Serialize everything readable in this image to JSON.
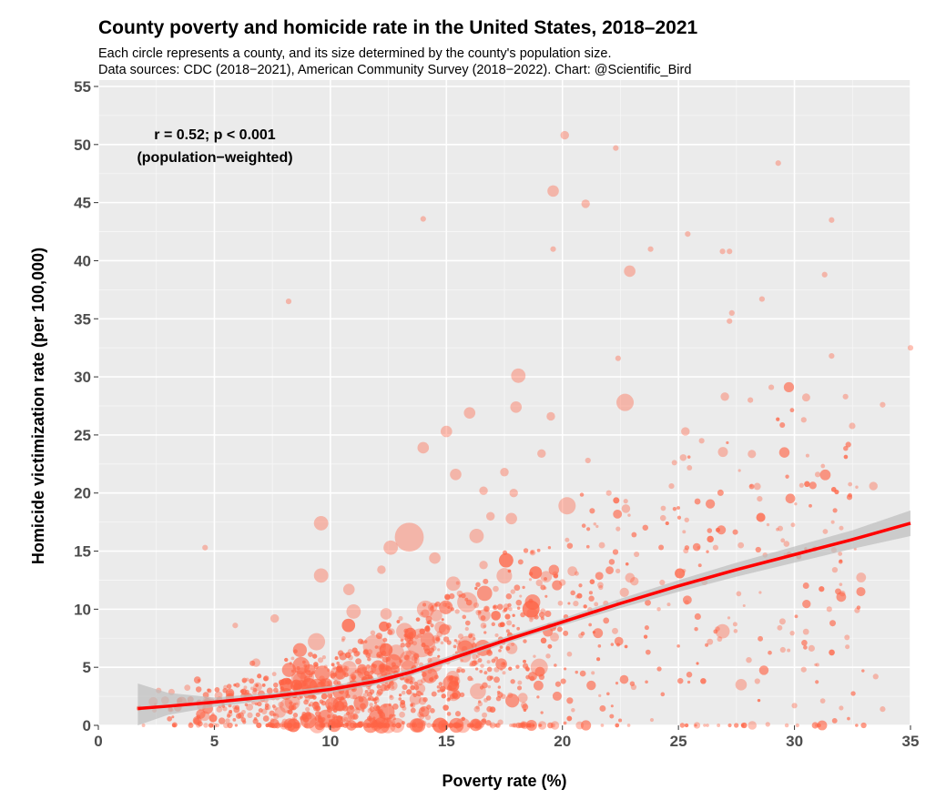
{
  "chart_data": {
    "type": "scatter",
    "title": "County poverty and homicide rate in the United States, 2018–2021",
    "subtitle_lines": [
      "Each circle represents a county, and its size determined by the county's population size.",
      "Data sources: CDC (2018−2021), American Community Survey (2018−2022). Chart: @Scientific_Bird"
    ],
    "xlabel": "Poverty rate (%)",
    "ylabel": "Homicide victimization rate (per 100,000)",
    "xlim": [
      0,
      35
    ],
    "ylim": [
      0,
      55
    ],
    "xticks": [
      "0",
      "5",
      "10",
      "15",
      "20",
      "25",
      "30",
      "35"
    ],
    "yticks": [
      "0",
      "5",
      "10",
      "15",
      "20",
      "25",
      "30",
      "35",
      "40",
      "45",
      "50",
      "55"
    ],
    "grid": true,
    "annotation": [
      "r = 0.52; p < 0.001",
      "(population−weighted)"
    ],
    "point_color": "#ff6347",
    "trend_color": "#ff0000",
    "band_color": "#bdbdbd",
    "trend": {
      "x": [
        1.7,
        3,
        5,
        7.5,
        10,
        12,
        13.5,
        15,
        17.5,
        20,
        22.5,
        25,
        27.5,
        30,
        32.5,
        35
      ],
      "y": [
        1.45,
        1.65,
        2.0,
        2.5,
        3.1,
        3.8,
        4.6,
        5.6,
        7.3,
        8.9,
        10.5,
        12.0,
        13.4,
        14.7,
        16.0,
        17.4
      ],
      "lower": [
        0.0,
        0.9,
        1.6,
        2.2,
        2.8,
        3.5,
        4.3,
        5.3,
        7.0,
        8.6,
        10.1,
        11.5,
        12.8,
        14.0,
        15.2,
        16.3
      ],
      "upper": [
        3.6,
        2.8,
        2.4,
        2.8,
        3.4,
        4.1,
        4.9,
        5.9,
        7.6,
        9.2,
        10.9,
        12.5,
        14.0,
        15.4,
        16.8,
        18.5
      ]
    },
    "points": [
      [
        20.1,
        50.8,
        2
      ],
      [
        22.3,
        49.7,
        1
      ],
      [
        29.3,
        48.4,
        1
      ],
      [
        19.6,
        46.0,
        3
      ],
      [
        21.0,
        44.9,
        2
      ],
      [
        14.0,
        43.6,
        1
      ],
      [
        31.6,
        43.5,
        1
      ],
      [
        25.4,
        42.3,
        1
      ],
      [
        19.6,
        41.0,
        1
      ],
      [
        23.8,
        41.0,
        1
      ],
      [
        26.9,
        40.8,
        1
      ],
      [
        27.2,
        40.8,
        1
      ],
      [
        22.9,
        39.1,
        3
      ],
      [
        31.3,
        38.8,
        1
      ],
      [
        8.2,
        36.5,
        1
      ],
      [
        28.6,
        36.7,
        1
      ],
      [
        27.3,
        35.5,
        1
      ],
      [
        27.2,
        34.8,
        1
      ],
      [
        35.0,
        32.5,
        1
      ],
      [
        22.4,
        31.6,
        1
      ],
      [
        31.6,
        31.8,
        1
      ],
      [
        29.0,
        29.1,
        1
      ],
      [
        18.1,
        30.1,
        4
      ],
      [
        22.7,
        27.8,
        5
      ],
      [
        16.0,
        26.9,
        3
      ],
      [
        18.0,
        27.4,
        3
      ],
      [
        19.5,
        26.6,
        2
      ],
      [
        15.0,
        25.3,
        3
      ],
      [
        14.0,
        23.9,
        3
      ],
      [
        15.4,
        21.6,
        3
      ],
      [
        20.2,
        18.9,
        5
      ],
      [
        9.6,
        17.4,
        4
      ],
      [
        13.4,
        16.2,
        9
      ],
      [
        12.6,
        15.3,
        4
      ],
      [
        14.5,
        14.4,
        3
      ],
      [
        9.6,
        12.9,
        4
      ],
      [
        26.9,
        8.1,
        4
      ],
      [
        27.7,
        3.5,
        3
      ],
      [
        33.5,
        4.2,
        1
      ],
      [
        30.0,
        1.7,
        1
      ],
      [
        33.8,
        1.4,
        1
      ],
      [
        33.8,
        27.6,
        1
      ],
      [
        32.2,
        28.3,
        1
      ],
      [
        30.4,
        26.3,
        1
      ],
      [
        31.0,
        21.6,
        1
      ],
      [
        33.4,
        20.6,
        2
      ],
      [
        27.0,
        28.3,
        2
      ],
      [
        28.1,
        28.0,
        1
      ],
      [
        25.3,
        25.3,
        2
      ],
      [
        26.0,
        24.5,
        1
      ],
      [
        21.1,
        22.8,
        1
      ],
      [
        19.1,
        23.4,
        2
      ],
      [
        17.5,
        21.8,
        2
      ],
      [
        16.6,
        20.2,
        2
      ],
      [
        17.9,
        20.0,
        2
      ],
      [
        16.9,
        18.0,
        2
      ],
      [
        16.3,
        16.3,
        4
      ],
      [
        17.8,
        17.8,
        3
      ],
      [
        15.9,
        10.6,
        6
      ],
      [
        14.1,
        10.0,
        5
      ],
      [
        11.0,
        9.8,
        4
      ],
      [
        8.8,
        4.5,
        3
      ],
      [
        19.0,
        5.0,
        5
      ],
      [
        19.3,
        12.8,
        3
      ],
      [
        16.6,
        13.8,
        2
      ],
      [
        15.3,
        12.2,
        4
      ],
      [
        10.8,
        11.7,
        3
      ],
      [
        12.4,
        9.6,
        3
      ],
      [
        13.9,
        7.1,
        9
      ],
      [
        11.9,
        6.8,
        7
      ],
      [
        9.4,
        7.2,
        5
      ],
      [
        13.4,
        5.6,
        6
      ],
      [
        18.7,
        9.6,
        3
      ],
      [
        23.1,
        12.4,
        2
      ],
      [
        24.3,
        12.3,
        1
      ],
      [
        2.6,
        3.0,
        1
      ],
      [
        4.6,
        15.3,
        1
      ],
      [
        5.9,
        8.6,
        1
      ],
      [
        6.8,
        5.4,
        2
      ],
      [
        7.6,
        9.2,
        2
      ],
      [
        12.2,
        13.4,
        2
      ],
      [
        22.0,
        20.0,
        1
      ],
      [
        24.7,
        20.6,
        1
      ],
      [
        28.5,
        19.5,
        1
      ],
      [
        31.7,
        15.1,
        1
      ],
      [
        32.7,
        9.9,
        1
      ],
      [
        31.5,
        10.0,
        1
      ],
      [
        29.5,
        6.5,
        1
      ],
      [
        28.4,
        3.8,
        1
      ],
      [
        26.6,
        15.3,
        1
      ],
      [
        30.4,
        4.8,
        1
      ]
    ],
    "cloud_note_count": 2200
  }
}
